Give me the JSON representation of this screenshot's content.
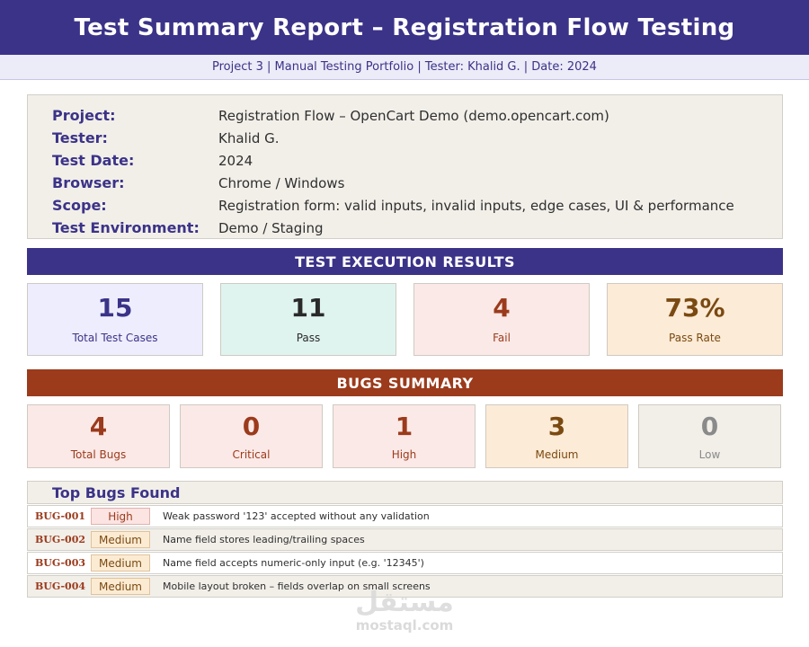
{
  "header": {
    "title": "Test Summary Report – Registration Flow Testing",
    "subtitle": "Project 3 | Manual Testing Portfolio | Tester: Khalid G. | Date: 2024"
  },
  "info": [
    {
      "key": "Project:",
      "value": "Registration Flow – OpenCart Demo (demo.opencart.com)"
    },
    {
      "key": "Tester:",
      "value": "Khalid G."
    },
    {
      "key": "Test Date:",
      "value": "2024"
    },
    {
      "key": "Browser:",
      "value": "Chrome / Windows"
    },
    {
      "key": "Scope:",
      "value": "Registration form: valid inputs, invalid inputs, edge cases, UI & performance"
    },
    {
      "key": "Test Environment:",
      "value": "Demo / Staging"
    }
  ],
  "execution": {
    "heading": "TEST EXECUTION RESULTS",
    "cards": [
      {
        "value": "15",
        "label": "Total Test Cases",
        "bg": "#eeedfd",
        "color": "#3b3388"
      },
      {
        "value": "11",
        "label": "Pass",
        "bg": "#e0f4ef",
        "color": "#2a2a2a"
      },
      {
        "value": "4",
        "label": "Fail",
        "bg": "#fbe9e7",
        "color": "#9b3b1c"
      },
      {
        "value": "73%",
        "label": "Pass Rate",
        "bg": "#fcebd6",
        "color": "#7a4a12"
      }
    ]
  },
  "bugs": {
    "heading": "BUGS SUMMARY",
    "cards": [
      {
        "value": "4",
        "label": "Total Bugs",
        "bg": "#fbe9e7",
        "color": "#9b3b1c"
      },
      {
        "value": "0",
        "label": "Critical",
        "bg": "#fbe9e7",
        "color": "#9b3b1c"
      },
      {
        "value": "1",
        "label": "High",
        "bg": "#fbe9e7",
        "color": "#9b3b1c"
      },
      {
        "value": "3",
        "label": "Medium",
        "bg": "#fcebd6",
        "color": "#7a4a12"
      },
      {
        "value": "0",
        "label": "Low",
        "bg": "#f2efe9",
        "color": "#8a8a8a"
      }
    ]
  },
  "top_bugs": {
    "heading": "Top Bugs Found",
    "rows": [
      {
        "id": "BUG-001",
        "severity": "High",
        "description": "Weak password '123' accepted without any validation"
      },
      {
        "id": "BUG-002",
        "severity": "Medium",
        "description": "Name field stores leading/trailing spaces"
      },
      {
        "id": "BUG-003",
        "severity": "Medium",
        "description": "Name field accepts numeric-only input (e.g. '12345')"
      },
      {
        "id": "BUG-004",
        "severity": "Medium",
        "description": "Mobile layout broken – fields overlap on small screens"
      }
    ]
  },
  "watermark": {
    "glyph": "مستقل",
    "text": "mostaql.com"
  }
}
